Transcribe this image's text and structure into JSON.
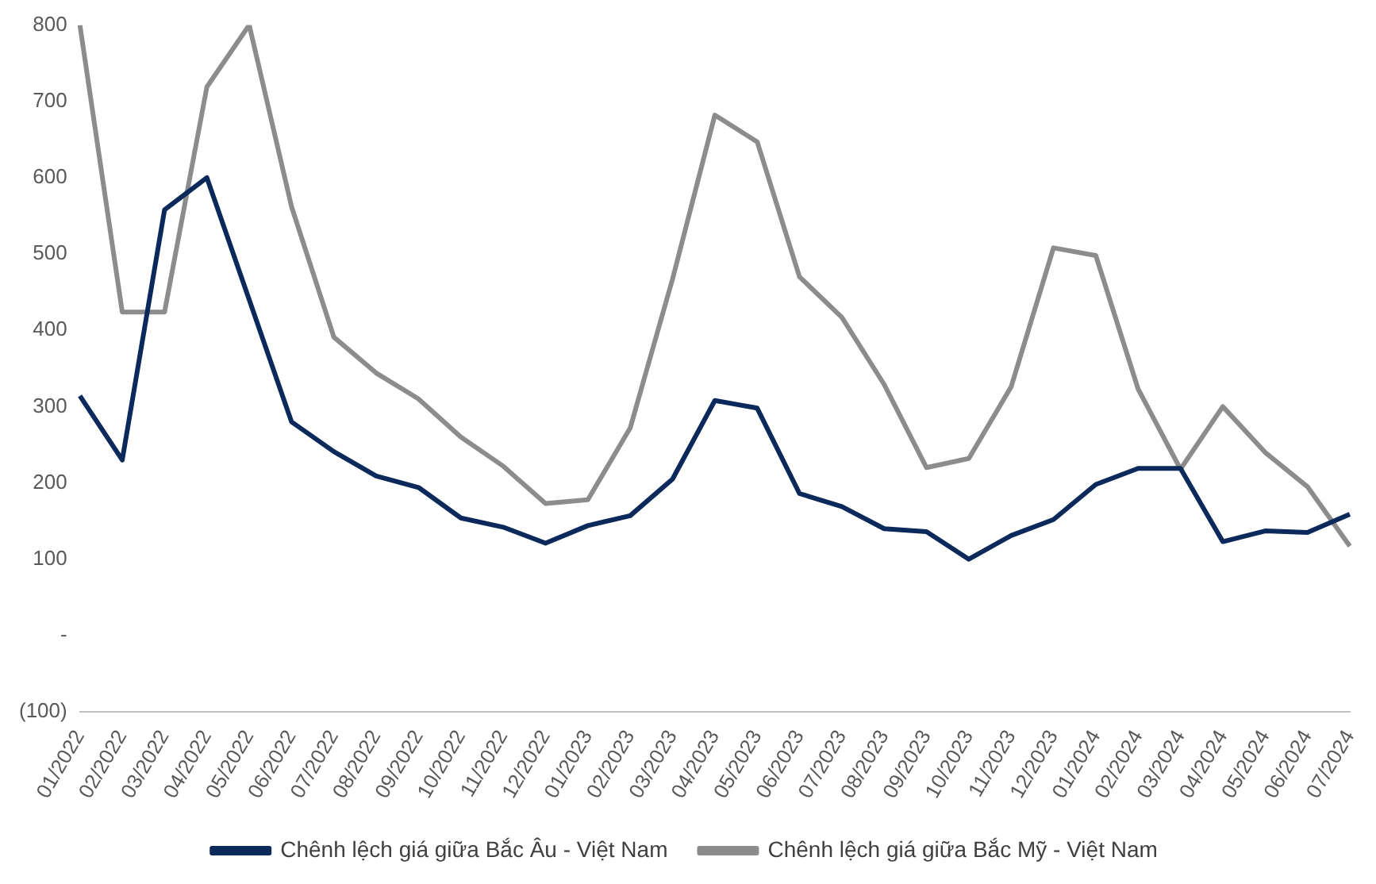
{
  "chart_data": {
    "type": "line",
    "categories": [
      "01/2022",
      "02/2022",
      "03/2022",
      "04/2022",
      "05/2022",
      "06/2022",
      "07/2022",
      "08/2022",
      "09/2022",
      "10/2022",
      "11/2022",
      "12/2022",
      "01/2023",
      "02/2023",
      "03/2023",
      "04/2023",
      "05/2023",
      "06/2023",
      "07/2023",
      "08/2023",
      "09/2023",
      "10/2023",
      "11/2023",
      "12/2023",
      "01/2024",
      "02/2024",
      "03/2024",
      "04/2024",
      "05/2024",
      "06/2024",
      "07/2024"
    ],
    "series": [
      {
        "name": "Chênh lệch giá giữa Bắc Âu - Việt Nam",
        "color": "#0b2a5b",
        "values": [
          314,
          230,
          558,
          600,
          440,
          280,
          241,
          209,
          194,
          154,
          142,
          121,
          144,
          157,
          205,
          308,
          298,
          186,
          169,
          140,
          136,
          100,
          131,
          152,
          198,
          219,
          219,
          123,
          137,
          135,
          159
        ]
      },
      {
        "name": "Chênh lệch giá giữa Bắc Mỹ - Việt Nam",
        "color": "#8c8c8c",
        "values": [
          800,
          424,
          424,
          719,
          800,
          562,
          391,
          344,
          310,
          260,
          222,
          173,
          178,
          272,
          467,
          682,
          647,
          470,
          417,
          329,
          220,
          232,
          326,
          508,
          498,
          323,
          218,
          300,
          240,
          195,
          117
        ]
      }
    ],
    "ylim": [
      -100,
      800
    ],
    "yticks": [
      {
        "value": -100,
        "label": "(100)"
      },
      {
        "value": 0,
        "label": "-"
      },
      100,
      200,
      300,
      400,
      500,
      600,
      700,
      800
    ],
    "grid": false,
    "legend": "bottom",
    "marker": "none",
    "line_style": "solid"
  }
}
